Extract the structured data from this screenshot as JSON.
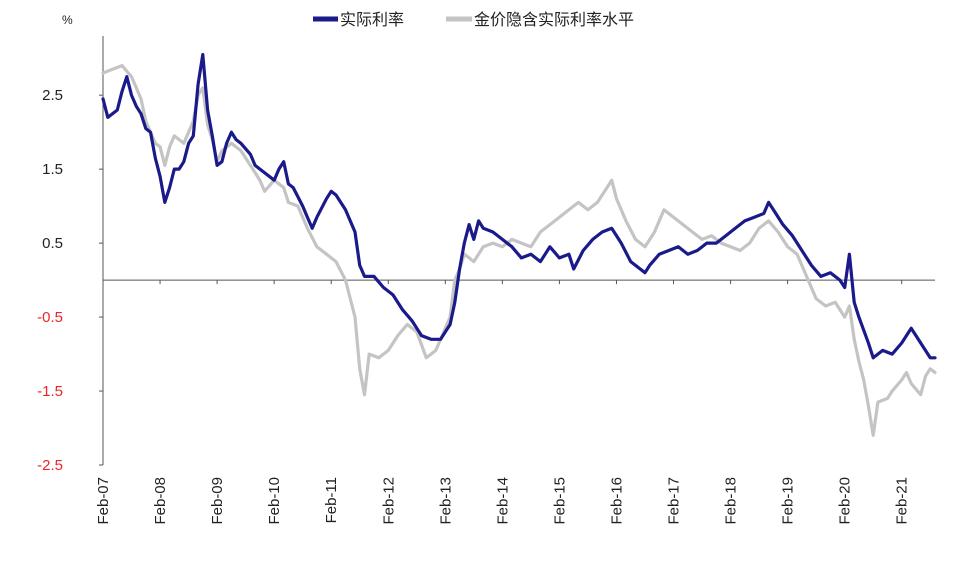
{
  "chart_data": {
    "type": "line",
    "ylabel": "%",
    "ylim": [
      -2.5,
      3.3
    ],
    "xlim": [
      "2007-02",
      "2021-09"
    ],
    "grid": false,
    "legend_position": "top-center",
    "zero_line": true,
    "y_ticks": [
      {
        "value": 2.5,
        "label": "2.5"
      },
      {
        "value": 1.5,
        "label": "1.5"
      },
      {
        "value": 0.5,
        "label": "0.5"
      },
      {
        "value": -0.5,
        "label": "-0.5"
      },
      {
        "value": -1.5,
        "label": "-1.5"
      },
      {
        "value": -2.5,
        "label": "-2.5"
      }
    ],
    "x_ticks": [
      {
        "date": "2007-02",
        "label": "Feb-07"
      },
      {
        "date": "2008-02",
        "label": "Feb-08"
      },
      {
        "date": "2009-02",
        "label": "Feb-09"
      },
      {
        "date": "2010-02",
        "label": "Feb-10"
      },
      {
        "date": "2011-02",
        "label": "Feb-11"
      },
      {
        "date": "2012-02",
        "label": "Feb-12"
      },
      {
        "date": "2013-02",
        "label": "Feb-13"
      },
      {
        "date": "2014-02",
        "label": "Feb-14"
      },
      {
        "date": "2015-02",
        "label": "Feb-15"
      },
      {
        "date": "2016-02",
        "label": "Feb-16"
      },
      {
        "date": "2017-02",
        "label": "Feb-17"
      },
      {
        "date": "2018-02",
        "label": "Feb-18"
      },
      {
        "date": "2019-02",
        "label": "Feb-19"
      },
      {
        "date": "2020-02",
        "label": "Feb-20"
      },
      {
        "date": "2021-02",
        "label": "Feb-21"
      }
    ],
    "colors": {
      "negative_tick": "#e8262b",
      "positive_tick": "#222222",
      "axis": "#555555"
    },
    "series": [
      {
        "name": "实际利率",
        "color": "#1a1a8a",
        "points": [
          [
            "2007-02",
            2.45
          ],
          [
            "2007-03",
            2.2
          ],
          [
            "2007-05",
            2.3
          ],
          [
            "2007-06",
            2.55
          ],
          [
            "2007-07",
            2.75
          ],
          [
            "2007-08",
            2.5
          ],
          [
            "2007-09",
            2.35
          ],
          [
            "2007-10",
            2.25
          ],
          [
            "2007-11",
            2.05
          ],
          [
            "2007-12",
            2.0
          ],
          [
            "2008-01",
            1.65
          ],
          [
            "2008-02",
            1.4
          ],
          [
            "2008-03",
            1.05
          ],
          [
            "2008-04",
            1.25
          ],
          [
            "2008-05",
            1.5
          ],
          [
            "2008-06",
            1.5
          ],
          [
            "2008-07",
            1.6
          ],
          [
            "2008-08",
            1.85
          ],
          [
            "2008-09",
            1.95
          ],
          [
            "2008-10",
            2.65
          ],
          [
            "2008-11",
            3.05
          ],
          [
            "2008-12",
            2.3
          ],
          [
            "2009-01",
            1.95
          ],
          [
            "2009-02",
            1.55
          ],
          [
            "2009-03",
            1.6
          ],
          [
            "2009-04",
            1.85
          ],
          [
            "2009-05",
            2.0
          ],
          [
            "2009-06",
            1.9
          ],
          [
            "2009-07",
            1.85
          ],
          [
            "2009-09",
            1.7
          ],
          [
            "2009-10",
            1.55
          ],
          [
            "2009-12",
            1.45
          ],
          [
            "2010-02",
            1.35
          ],
          [
            "2010-03",
            1.5
          ],
          [
            "2010-04",
            1.6
          ],
          [
            "2010-05",
            1.3
          ],
          [
            "2010-06",
            1.25
          ],
          [
            "2010-08",
            1.0
          ],
          [
            "2010-09",
            0.85
          ],
          [
            "2010-10",
            0.7
          ],
          [
            "2010-11",
            0.85
          ],
          [
            "2011-01",
            1.1
          ],
          [
            "2011-02",
            1.2
          ],
          [
            "2011-03",
            1.15
          ],
          [
            "2011-05",
            0.95
          ],
          [
            "2011-07",
            0.65
          ],
          [
            "2011-08",
            0.2
          ],
          [
            "2011-09",
            0.05
          ],
          [
            "2011-11",
            0.05
          ],
          [
            "2012-01",
            -0.1
          ],
          [
            "2012-03",
            -0.2
          ],
          [
            "2012-05",
            -0.4
          ],
          [
            "2012-07",
            -0.55
          ],
          [
            "2012-09",
            -0.75
          ],
          [
            "2012-11",
            -0.8
          ],
          [
            "2013-01",
            -0.8
          ],
          [
            "2013-02",
            -0.7
          ],
          [
            "2013-03",
            -0.6
          ],
          [
            "2013-04",
            -0.3
          ],
          [
            "2013-05",
            0.15
          ],
          [
            "2013-06",
            0.5
          ],
          [
            "2013-07",
            0.75
          ],
          [
            "2013-08",
            0.55
          ],
          [
            "2013-09",
            0.8
          ],
          [
            "2013-10",
            0.7
          ],
          [
            "2013-12",
            0.65
          ],
          [
            "2014-02",
            0.55
          ],
          [
            "2014-04",
            0.45
          ],
          [
            "2014-06",
            0.3
          ],
          [
            "2014-08",
            0.35
          ],
          [
            "2014-10",
            0.25
          ],
          [
            "2014-12",
            0.45
          ],
          [
            "2015-02",
            0.3
          ],
          [
            "2015-04",
            0.35
          ],
          [
            "2015-05",
            0.15
          ],
          [
            "2015-07",
            0.4
          ],
          [
            "2015-09",
            0.55
          ],
          [
            "2015-11",
            0.65
          ],
          [
            "2016-01",
            0.7
          ],
          [
            "2016-03",
            0.5
          ],
          [
            "2016-05",
            0.25
          ],
          [
            "2016-07",
            0.15
          ],
          [
            "2016-08",
            0.1
          ],
          [
            "2016-09",
            0.2
          ],
          [
            "2016-11",
            0.35
          ],
          [
            "2017-01",
            0.4
          ],
          [
            "2017-03",
            0.45
          ],
          [
            "2017-05",
            0.35
          ],
          [
            "2017-07",
            0.4
          ],
          [
            "2017-09",
            0.5
          ],
          [
            "2017-11",
            0.5
          ],
          [
            "2018-01",
            0.6
          ],
          [
            "2018-03",
            0.7
          ],
          [
            "2018-05",
            0.8
          ],
          [
            "2018-07",
            0.85
          ],
          [
            "2018-09",
            0.9
          ],
          [
            "2018-10",
            1.05
          ],
          [
            "2018-11",
            0.95
          ],
          [
            "2019-01",
            0.75
          ],
          [
            "2019-03",
            0.6
          ],
          [
            "2019-05",
            0.4
          ],
          [
            "2019-07",
            0.2
          ],
          [
            "2019-09",
            0.05
          ],
          [
            "2019-11",
            0.1
          ],
          [
            "2020-01",
            0.0
          ],
          [
            "2020-02",
            -0.1
          ],
          [
            "2020-03",
            0.35
          ],
          [
            "2020-04",
            -0.3
          ],
          [
            "2020-05",
            -0.5
          ],
          [
            "2020-07",
            -0.85
          ],
          [
            "2020-08",
            -1.05
          ],
          [
            "2020-10",
            -0.95
          ],
          [
            "2020-12",
            -1.0
          ],
          [
            "2021-02",
            -0.85
          ],
          [
            "2021-04",
            -0.65
          ],
          [
            "2021-06",
            -0.85
          ],
          [
            "2021-08",
            -1.05
          ],
          [
            "2021-09",
            -1.05
          ]
        ]
      },
      {
        "name": "金价隐含实际利率水平",
        "color": "#c4c4c4",
        "points": [
          [
            "2007-02",
            2.8
          ],
          [
            "2007-04",
            2.85
          ],
          [
            "2007-06",
            2.9
          ],
          [
            "2007-08",
            2.75
          ],
          [
            "2007-09",
            2.6
          ],
          [
            "2007-10",
            2.45
          ],
          [
            "2007-11",
            2.15
          ],
          [
            "2007-12",
            2.0
          ],
          [
            "2008-01",
            1.85
          ],
          [
            "2008-02",
            1.8
          ],
          [
            "2008-03",
            1.55
          ],
          [
            "2008-04",
            1.8
          ],
          [
            "2008-05",
            1.95
          ],
          [
            "2008-07",
            1.85
          ],
          [
            "2008-08",
            2.0
          ],
          [
            "2008-09",
            2.15
          ],
          [
            "2008-10",
            2.5
          ],
          [
            "2008-11",
            2.6
          ],
          [
            "2008-12",
            2.1
          ],
          [
            "2009-01",
            1.9
          ],
          [
            "2009-02",
            1.6
          ],
          [
            "2009-03",
            1.75
          ],
          [
            "2009-05",
            1.85
          ],
          [
            "2009-07",
            1.75
          ],
          [
            "2009-09",
            1.55
          ],
          [
            "2009-11",
            1.35
          ],
          [
            "2009-12",
            1.2
          ],
          [
            "2010-02",
            1.35
          ],
          [
            "2010-04",
            1.25
          ],
          [
            "2010-05",
            1.05
          ],
          [
            "2010-07",
            1.0
          ],
          [
            "2010-09",
            0.7
          ],
          [
            "2010-11",
            0.45
          ],
          [
            "2011-01",
            0.35
          ],
          [
            "2011-03",
            0.25
          ],
          [
            "2011-05",
            0.0
          ],
          [
            "2011-07",
            -0.5
          ],
          [
            "2011-08",
            -1.2
          ],
          [
            "2011-09",
            -1.55
          ],
          [
            "2011-10",
            -1.0
          ],
          [
            "2011-12",
            -1.05
          ],
          [
            "2012-02",
            -0.95
          ],
          [
            "2012-04",
            -0.75
          ],
          [
            "2012-06",
            -0.6
          ],
          [
            "2012-08",
            -0.7
          ],
          [
            "2012-10",
            -1.05
          ],
          [
            "2012-12",
            -0.95
          ],
          [
            "2013-02",
            -0.65
          ],
          [
            "2013-03",
            -0.5
          ],
          [
            "2013-04",
            0.0
          ],
          [
            "2013-05",
            0.15
          ],
          [
            "2013-06",
            0.35
          ],
          [
            "2013-07",
            0.3
          ],
          [
            "2013-08",
            0.25
          ],
          [
            "2013-10",
            0.45
          ],
          [
            "2013-12",
            0.5
          ],
          [
            "2014-02",
            0.45
          ],
          [
            "2014-04",
            0.55
          ],
          [
            "2014-06",
            0.5
          ],
          [
            "2014-08",
            0.45
          ],
          [
            "2014-10",
            0.65
          ],
          [
            "2014-12",
            0.75
          ],
          [
            "2015-02",
            0.85
          ],
          [
            "2015-04",
            0.95
          ],
          [
            "2015-06",
            1.05
          ],
          [
            "2015-08",
            0.95
          ],
          [
            "2015-10",
            1.05
          ],
          [
            "2015-12",
            1.25
          ],
          [
            "2016-01",
            1.35
          ],
          [
            "2016-02",
            1.1
          ],
          [
            "2016-04",
            0.8
          ],
          [
            "2016-06",
            0.55
          ],
          [
            "2016-08",
            0.45
          ],
          [
            "2016-10",
            0.65
          ],
          [
            "2016-12",
            0.95
          ],
          [
            "2017-02",
            0.85
          ],
          [
            "2017-04",
            0.75
          ],
          [
            "2017-06",
            0.65
          ],
          [
            "2017-08",
            0.55
          ],
          [
            "2017-10",
            0.6
          ],
          [
            "2017-12",
            0.5
          ],
          [
            "2018-02",
            0.45
          ],
          [
            "2018-04",
            0.4
          ],
          [
            "2018-06",
            0.5
          ],
          [
            "2018-08",
            0.7
          ],
          [
            "2018-10",
            0.8
          ],
          [
            "2018-12",
            0.65
          ],
          [
            "2019-02",
            0.45
          ],
          [
            "2019-04",
            0.35
          ],
          [
            "2019-06",
            0.05
          ],
          [
            "2019-08",
            -0.25
          ],
          [
            "2019-10",
            -0.35
          ],
          [
            "2019-12",
            -0.3
          ],
          [
            "2020-02",
            -0.5
          ],
          [
            "2020-03",
            -0.35
          ],
          [
            "2020-04",
            -0.8
          ],
          [
            "2020-05",
            -1.1
          ],
          [
            "2020-06",
            -1.35
          ],
          [
            "2020-07",
            -1.7
          ],
          [
            "2020-08",
            -2.1
          ],
          [
            "2020-09",
            -1.65
          ],
          [
            "2020-11",
            -1.6
          ],
          [
            "2020-12",
            -1.5
          ],
          [
            "2021-02",
            -1.35
          ],
          [
            "2021-03",
            -1.25
          ],
          [
            "2021-04",
            -1.4
          ],
          [
            "2021-06",
            -1.55
          ],
          [
            "2021-07",
            -1.3
          ],
          [
            "2021-08",
            -1.2
          ],
          [
            "2021-09",
            -1.25
          ]
        ]
      }
    ]
  }
}
